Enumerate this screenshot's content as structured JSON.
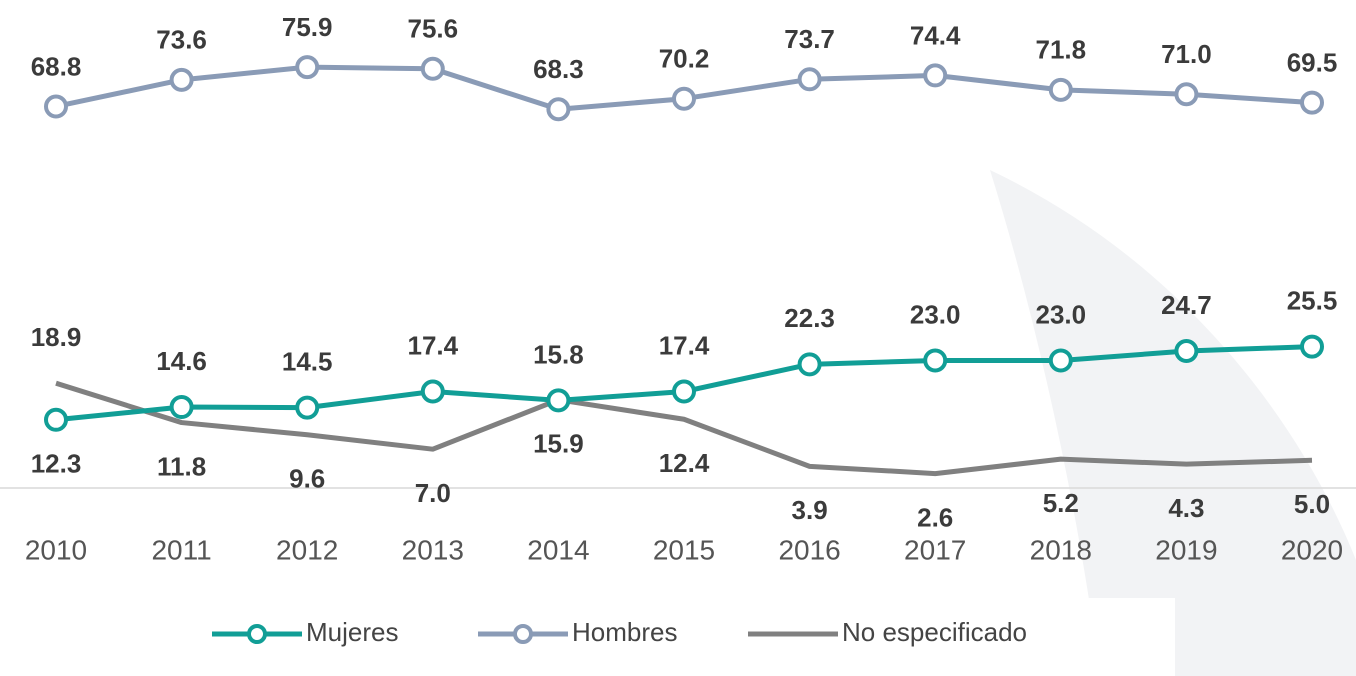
{
  "chart_data": {
    "type": "line",
    "categories": [
      "2010",
      "2011",
      "2012",
      "2013",
      "2014",
      "2015",
      "2016",
      "2017",
      "2018",
      "2019",
      "2020"
    ],
    "series": [
      {
        "name": "Mujeres",
        "color": "#119e96",
        "marker": "circle",
        "values": [
          12.3,
          14.6,
          14.5,
          17.4,
          15.8,
          17.4,
          22.3,
          23.0,
          23.0,
          24.7,
          25.5
        ],
        "value_labels": [
          "12.3",
          "14.6",
          "14.5",
          "17.4",
          "15.8",
          "17.4",
          "22.3",
          "23.0",
          "23.0",
          "24.7",
          "25.5"
        ]
      },
      {
        "name": "Hombres",
        "color": "#8a9bb6",
        "marker": "circle",
        "values": [
          68.8,
          73.6,
          75.9,
          75.6,
          68.3,
          70.2,
          73.7,
          74.4,
          71.8,
          71.0,
          69.5
        ],
        "value_labels": [
          "68.8",
          "73.6",
          "75.9",
          "75.6",
          "68.3",
          "70.2",
          "73.7",
          "74.4",
          "71.8",
          "71.0",
          "69.5"
        ]
      },
      {
        "name": "No especificado",
        "color": "#808080",
        "values": [
          18.9,
          11.8,
          9.6,
          7.0,
          15.9,
          12.4,
          3.9,
          2.6,
          5.2,
          4.3,
          5.0
        ],
        "value_labels": [
          "18.9",
          "11.8",
          "9.6",
          "7.0",
          "15.9",
          "12.4",
          "3.9",
          "2.6",
          "5.2",
          "4.3",
          "5.0"
        ]
      }
    ],
    "ylim": [
      0,
      88
    ],
    "legend": "bottom"
  }
}
